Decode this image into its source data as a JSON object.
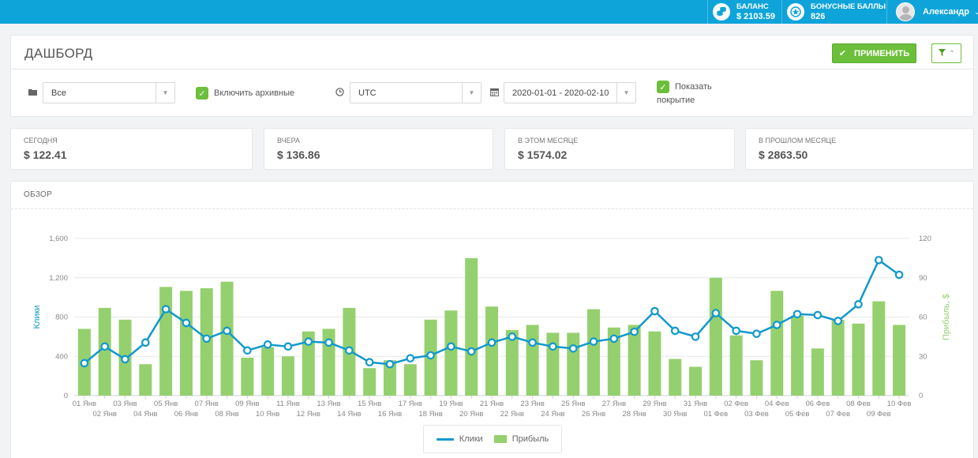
{
  "topbar": {
    "balance": {
      "label": "БАЛАНС",
      "value": "$ 2103.59",
      "icon": "coins-icon"
    },
    "bonus": {
      "label": "БОНУСНЫЕ БАЛЛЫ",
      "value": "826",
      "icon": "star-badge-icon"
    },
    "user": {
      "name": "Александр",
      "icon": "avatar"
    }
  },
  "dashboard": {
    "title": "ДАШБОРД",
    "apply_label": "ПРИМЕНИТЬ",
    "filters": {
      "folder_value": "Все",
      "archive_label": "Включить архивные",
      "timezone_value": "UTC",
      "date_range_value": "2020-01-01 - 2020-02-10",
      "coverage_label_1": "Показать",
      "coverage_label_2": "покрытие"
    }
  },
  "stats": [
    {
      "label": "СЕГОДНЯ",
      "value": "$ 122.41"
    },
    {
      "label": "ВЧЕРА",
      "value": "$ 136.86"
    },
    {
      "label": "В ЭТОМ МЕСЯЦЕ",
      "value": "$ 1574.02"
    },
    {
      "label": "В ПРОШЛОМ МЕСЯЦЕ",
      "value": "$ 2863.50"
    }
  ],
  "overview": {
    "title": "ОБЗОР"
  },
  "chart_data": {
    "type": "bar+line",
    "categories": [
      "01 Янв",
      "02 Янв",
      "03 Янв",
      "04 Янв",
      "05 Янв",
      "06 Янв",
      "07 Янв",
      "08 Янв",
      "09 Янв",
      "10 Янв",
      "11 Янв",
      "12 Янв",
      "13 Янв",
      "14 Янв",
      "15 Янв",
      "16 Янв",
      "17 Янв",
      "18 Янв",
      "19 Янв",
      "20 Янв",
      "21 Янв",
      "22 Янв",
      "23 Янв",
      "24 Янв",
      "25 Янв",
      "26 Янв",
      "27 Янв",
      "28 Янв",
      "29 Янв",
      "30 Янв",
      "31 Янв",
      "01 Фев",
      "02 Фев",
      "03 Фев",
      "04 Фев",
      "05 Фев",
      "06 Фев",
      "07 Фев",
      "08 Фев",
      "09 Фев",
      "10 Фев"
    ],
    "series": [
      {
        "name": "Клики",
        "type": "line",
        "axis": "left",
        "values": [
          330,
          500,
          370,
          540,
          880,
          740,
          580,
          660,
          460,
          520,
          500,
          550,
          540,
          460,
          340,
          320,
          380,
          410,
          500,
          450,
          540,
          600,
          540,
          500,
          480,
          550,
          580,
          650,
          860,
          660,
          600,
          840,
          660,
          630,
          720,
          830,
          820,
          760,
          930,
          1380,
          1230
        ]
      },
      {
        "name": "Прибыль",
        "type": "bar",
        "axis": "right",
        "values": [
          51,
          67,
          58,
          24,
          83,
          80,
          82,
          87,
          29,
          37,
          30,
          49,
          51,
          67,
          21,
          27,
          24,
          58,
          65,
          105,
          68,
          50,
          54,
          48,
          48,
          66,
          52,
          54,
          49,
          28,
          22,
          90,
          46,
          27,
          80,
          61,
          36,
          58,
          55,
          72,
          54
        ]
      }
    ],
    "ylabel": "Клики",
    "y2label": "Прибыль, $",
    "ylim": [
      0,
      1600
    ],
    "y2lim": [
      0,
      120
    ],
    "yticks": [
      "0",
      "400",
      "800",
      "1,200",
      "1,600"
    ],
    "y2ticks": [
      "0",
      "30",
      "60",
      "90",
      "120"
    ],
    "colors": {
      "line": "#1299cc",
      "bar": "#95d06e"
    },
    "grid": true,
    "legend": "bottom-center"
  }
}
